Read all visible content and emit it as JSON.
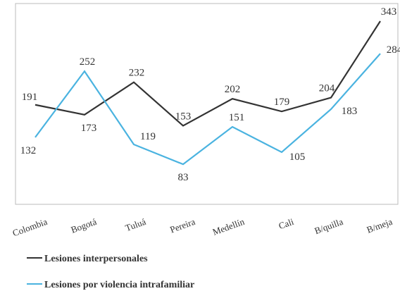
{
  "chart_data": {
    "type": "line",
    "categories": [
      "Colombia",
      "Bogotá",
      "Tuluá",
      "Pereira",
      "Medellín",
      "Cali",
      "B/quilla",
      "B/meja"
    ],
    "series": [
      {
        "name": "Lesiones interpersonales",
        "color": "#333333",
        "values": [
          191,
          173,
          232,
          153,
          202,
          179,
          204,
          343
        ]
      },
      {
        "name": "Lesiones por violencia intrafamiliar",
        "color": "#4ab3e0",
        "values": [
          132,
          252,
          119,
          83,
          151,
          105,
          183,
          284
        ]
      }
    ],
    "ylim": [
      0,
      375
    ]
  }
}
